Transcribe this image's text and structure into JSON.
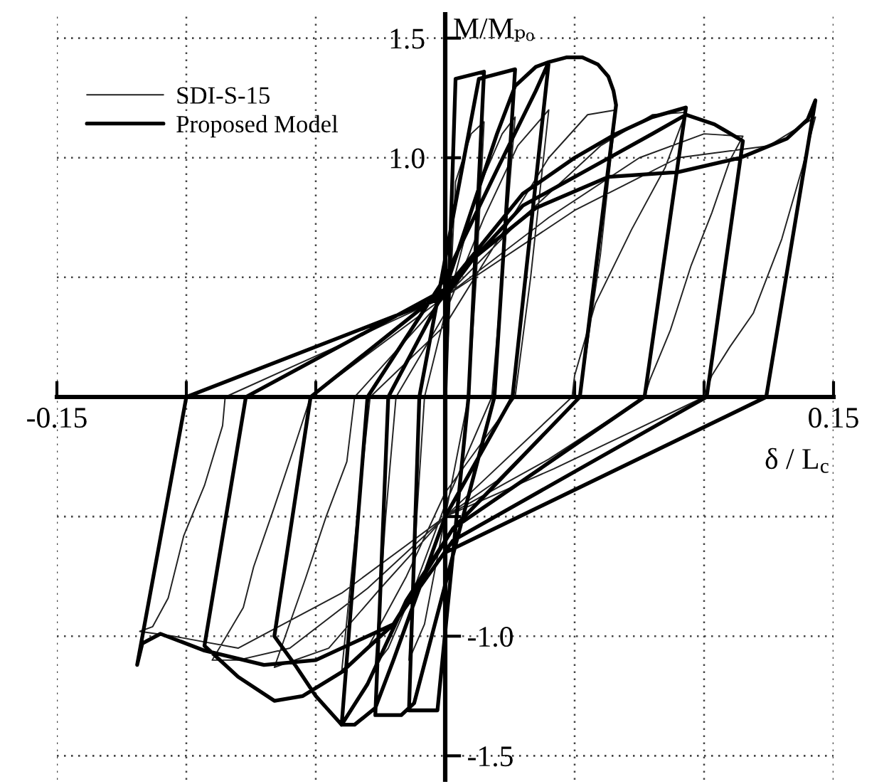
{
  "chart_data": {
    "type": "line",
    "xlabel": "δ / L$_{c}$",
    "y2label": "M/Mₚₒ",
    "xlim": [
      -0.15,
      0.15
    ],
    "ylim": [
      -1.6,
      1.6
    ],
    "y2lim": [
      -1.6,
      1.6
    ],
    "xticks": [
      -0.15,
      {
        "value": -0.1,
        "label": null
      },
      {
        "value": -0.05,
        "label": null
      },
      {
        "value": 0.05,
        "label": null
      },
      {
        "value": 0.1,
        "label": null
      },
      0.15
    ],
    "yticks": [
      {
        "value": -0.5,
        "label": null
      },
      {
        "value": 0.5,
        "label": null
      },
      {
        "value": 1.0,
        "label": "1.0"
      },
      1.5
    ],
    "y2ticks": [
      {
        "value": -1.5,
        "label": "-1.5"
      },
      {
        "value": -1.0,
        "label": "-1.0"
      }
    ],
    "grid": true,
    "legend": "top left",
    "series": [
      {
        "name": "SDI-S-15",
        "color": "#222222",
        "x": [
          0,
          0.004,
          0.01,
          0.015,
          0.012,
          0.009,
          0.0,
          -0.008,
          -0.014,
          -0.011,
          -0.008,
          0.0,
          0.012,
          0.022,
          0.027,
          0.022,
          0.018,
          0.0,
          -0.012,
          -0.022,
          -0.027,
          -0.023,
          -0.019,
          0.0,
          0.015,
          0.028,
          0.04,
          0.033,
          0.027,
          0.0,
          -0.015,
          -0.03,
          -0.04,
          -0.034,
          -0.029,
          0.0,
          0.02,
          0.04,
          0.055,
          0.066,
          0.06,
          0.052,
          0.02,
          0.0,
          -0.025,
          -0.045,
          -0.066,
          -0.054,
          -0.046,
          -0.038,
          -0.035,
          0.0,
          0.03,
          0.06,
          0.08,
          0.093,
          0.085,
          0.072,
          0.058,
          0.05,
          0.049,
          0.0,
          -0.03,
          -0.06,
          -0.08,
          -0.09,
          -0.078,
          -0.074,
          -0.066,
          -0.058,
          -0.052,
          0.0,
          0.04,
          0.075,
          0.1,
          0.115,
          0.11,
          0.103,
          0.095,
          0.087,
          0.079,
          0.077,
          0.04,
          0.0,
          -0.04,
          -0.08,
          -0.105,
          -0.118,
          -0.113,
          -0.107,
          -0.101,
          -0.093,
          -0.086,
          -0.085,
          -0.04,
          0.0,
          0.05,
          0.09,
          0.125,
          0.143,
          0.138,
          0.13,
          0.119,
          0.11,
          0.103,
          0.1,
          0.075,
          0.042,
          0.0
        ],
        "values": [
          0,
          0.9,
          1.1,
          1.15,
          0.5,
          0,
          -0.5,
          -0.95,
          -1.1,
          -0.5,
          0,
          0.35,
          0.85,
          1.1,
          1.17,
          0.5,
          0,
          -0.45,
          -0.8,
          -1.05,
          -1.12,
          -0.5,
          0,
          0.35,
          0.75,
          1.05,
          1.2,
          0.5,
          0,
          -0.4,
          -0.75,
          -1.05,
          -1.15,
          -0.5,
          0,
          0.3,
          0.65,
          1.0,
          1.18,
          1.2,
          0.6,
          0,
          -0.35,
          -0.5,
          -0.8,
          -1.05,
          -1.13,
          -0.76,
          -0.5,
          -0.27,
          0,
          0.42,
          0.75,
          1.05,
          1.18,
          1.19,
          0.96,
          0.7,
          0.39,
          0.09,
          0,
          -0.5,
          -0.8,
          -1.05,
          -1.1,
          -1.1,
          -0.88,
          -0.71,
          -0.46,
          -0.2,
          0,
          0.42,
          0.75,
          1.0,
          1.1,
          1.09,
          0.99,
          0.77,
          0.55,
          0.28,
          0.07,
          0,
          -0.26,
          -0.5,
          -0.82,
          -1.05,
          -1.0,
          -0.98,
          -0.96,
          -0.84,
          -0.58,
          -0.37,
          -0.12,
          0,
          0.22,
          0.42,
          0.78,
          1.0,
          1.05,
          1.17,
          0.96,
          0.66,
          0.35,
          0.21,
          0.09,
          0,
          -0.13,
          -0.3,
          -0.5
        ]
      },
      {
        "name": "Proposed Model",
        "color": "#000000",
        "x": [
          0,
          0.004,
          0.015,
          0.009,
          -0.003,
          -0.014,
          -0.01,
          0.013,
          0.027,
          0.019,
          -0.012,
          -0.017,
          -0.027,
          -0.022,
          0.0,
          0.02,
          0.027,
          0.035,
          0.04,
          0.026,
          0.0,
          -0.02,
          -0.027,
          -0.035,
          -0.04,
          -0.03,
          0.0,
          0.02,
          0.035,
          0.04,
          0.047,
          0.053,
          0.059,
          0.063,
          0.065,
          0.066,
          0.052,
          0.003,
          -0.015,
          -0.03,
          -0.04,
          -0.05,
          -0.058,
          -0.066,
          -0.052,
          0.0,
          0.03,
          0.05,
          0.066,
          0.08,
          0.093,
          0.077,
          0.003,
          -0.02,
          -0.04,
          -0.055,
          -0.066,
          -0.08,
          -0.093,
          -0.077,
          0.0,
          0.03,
          0.06,
          0.08,
          0.093,
          0.104,
          0.115,
          0.101,
          0.003,
          -0.02,
          -0.05,
          -0.07,
          -0.093,
          -0.11,
          -0.117,
          -0.119,
          -0.1,
          0.0,
          0.011,
          0.035,
          0.063,
          0.09,
          0.114,
          0.132,
          0.14,
          0.143,
          0.124,
          0.0
        ],
        "values": [
          0,
          1.33,
          1.36,
          0,
          -1.31,
          -1.31,
          0,
          1.33,
          1.37,
          0,
          -1.28,
          -1.33,
          -1.33,
          0,
          0.45,
          1.1,
          1.3,
          1.38,
          1.4,
          0,
          -0.5,
          -1.1,
          -1.3,
          -1.37,
          -1.37,
          0,
          0.5,
          0.95,
          1.28,
          1.4,
          1.42,
          1.42,
          1.39,
          1.34,
          1.28,
          1.22,
          0,
          -0.55,
          -0.85,
          -1.2,
          -1.37,
          -1.25,
          -1.12,
          -1.0,
          0,
          0.45,
          0.85,
          1.0,
          1.1,
          1.17,
          1.21,
          0,
          -0.55,
          -0.95,
          -1.15,
          -1.25,
          -1.27,
          -1.17,
          -1.04,
          0,
          0.45,
          0.8,
          0.98,
          1.1,
          1.18,
          1.14,
          1.07,
          0,
          -0.6,
          -0.95,
          -1.1,
          -1.12,
          -1.06,
          -0.99,
          -1.03,
          -1.12,
          0,
          0.42,
          0.58,
          0.79,
          0.92,
          0.94,
          1.0,
          1.08,
          1.16,
          1.24,
          0,
          -0.65
        ]
      }
    ]
  }
}
